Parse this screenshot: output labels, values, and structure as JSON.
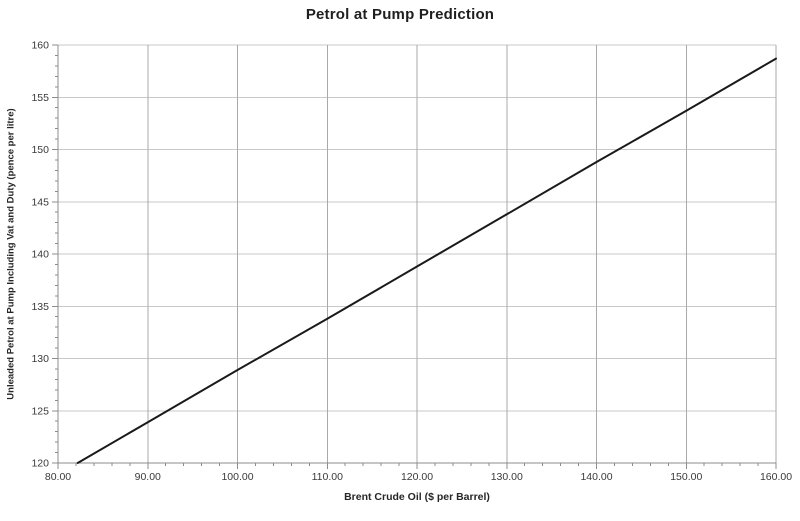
{
  "chart": {
    "title": "Petrol at Pump Prediction"
  },
  "chart_data": {
    "type": "line",
    "title": "Petrol at Pump Prediction",
    "xlabel": "Brent Crude Oil ($ per Barrel)",
    "ylabel": "Unleaded Petrol at Pump Including Vat and Duty (pence per litre)",
    "xlim": [
      80,
      160
    ],
    "ylim": [
      120,
      160
    ],
    "x_major_step": 10,
    "x_minor_step": 2,
    "y_major_step": 5,
    "y_minor_step": 1,
    "x_tick_labels": [
      "80.00",
      "90.00",
      "100.00",
      "110.00",
      "120.00",
      "130.00",
      "140.00",
      "150.00",
      "160.00"
    ],
    "y_tick_labels": [
      "120",
      "125",
      "130",
      "135",
      "140",
      "145",
      "150",
      "155",
      "160"
    ],
    "grid": true,
    "legend": "none",
    "series": [
      {
        "x": [
          82.2,
          90,
          100,
          110,
          120,
          130,
          140,
          150,
          160
        ],
        "y": [
          120,
          123.9,
          128.9,
          133.8,
          138.8,
          143.8,
          148.8,
          153.7,
          158.7
        ],
        "color": "#1a1a1a"
      }
    ],
    "colors": {
      "line": "#1a1a1a",
      "h_grid": "#c9c9c9",
      "v_grid": "#a9a9a9",
      "axis": "#8c8c8c",
      "tick_text": "#3a3a3a",
      "title_text": "#1f1f1f",
      "background": "#ffffff"
    }
  }
}
